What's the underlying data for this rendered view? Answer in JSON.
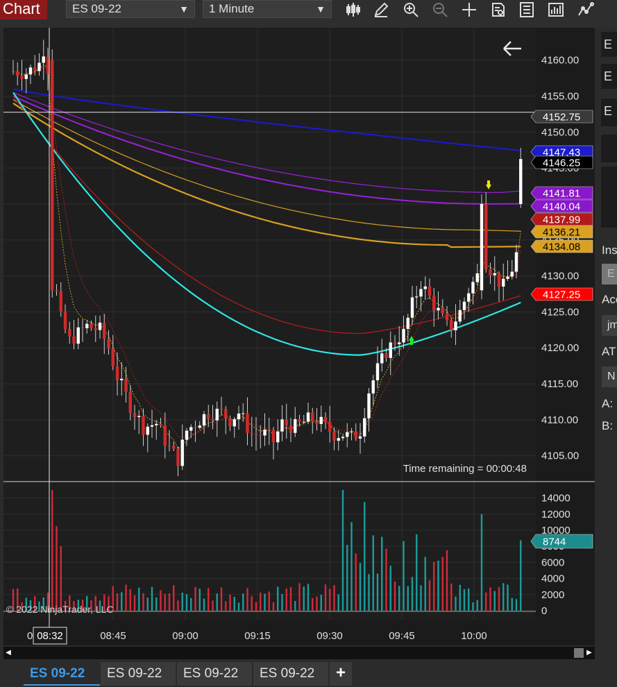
{
  "toolbar": {
    "chart_label": "Chart",
    "instrument": "ES 09-22",
    "interval": "1 Minute",
    "tools": [
      "bar-type-icon",
      "draw-pencil-icon",
      "zoom-in-icon",
      "zoom-out-icon",
      "crosshair-icon",
      "data-box-icon",
      "properties-icon",
      "strategies-icon",
      "indicator-icon"
    ]
  },
  "chart_data": {
    "type": "candlestick",
    "price_axis": {
      "ylim": [
        4101.5,
        4164.5
      ],
      "ticks": [
        "4160.00",
        "4155.00",
        "4150.00",
        "4145.00",
        "4140.00",
        "4135.00",
        "4130.00",
        "4125.00",
        "4120.00",
        "4115.00",
        "4110.00",
        "4105.00"
      ],
      "tick_values": [
        4160,
        4155,
        4150,
        4145,
        4140,
        4135,
        4130,
        4125,
        4120,
        4115,
        4110,
        4105
      ]
    },
    "volume_axis": {
      "ylim": [
        0,
        15000
      ],
      "ticks": [
        "14000",
        "12000",
        "10000",
        "8000",
        "6000",
        "4000",
        "2000",
        "0"
      ],
      "tick_values": [
        14000,
        12000,
        10000,
        8000,
        6000,
        4000,
        2000,
        0
      ]
    },
    "time_axis": {
      "labels": [
        "08:45",
        "09:00",
        "09:15",
        "09:30",
        "09:45",
        "10:00"
      ],
      "crosshair_label": "08:32",
      "partial_label": "0"
    },
    "price_markers": [
      {
        "label": "4152.75",
        "value": 4152.75,
        "bg": "#3a3a3a",
        "fg": "#ffffff"
      },
      {
        "label": "4147.43",
        "value": 4147.43,
        "bg": "#1c1cc8",
        "fg": "#ffffff"
      },
      {
        "label": "4146.25",
        "value": 4146.25,
        "bg": "#000000",
        "fg": "#ffffff"
      },
      {
        "label": "4141.81",
        "value": 4141.81,
        "bg": "#8a17c9",
        "fg": "#ffffff"
      },
      {
        "label": "4140.04",
        "value": 4140.04,
        "bg": "#8a17c9",
        "fg": "#ffffff"
      },
      {
        "label": "4137.99",
        "value": 4137.99,
        "bg": "#b31b1b",
        "fg": "#ffffff"
      },
      {
        "label": "4136.21",
        "value": 4136.21,
        "bg": "#d9a021",
        "fg": "#000000"
      },
      {
        "label": "4134.08",
        "value": 4134.08,
        "bg": "#d9a021",
        "fg": "#000000"
      },
      {
        "label": "4127.25",
        "value": 4127.25,
        "bg": "#ff0000",
        "fg": "#ffffff"
      }
    ],
    "volume_marker": {
      "label": "8744",
      "value": 8744,
      "bg": "#1c8c8c",
      "fg": "#ffffff"
    },
    "time_remaining": "Time remaining = 00:00:48",
    "copyright": "© 2022 NinjaTrader, LLC",
    "colors": {
      "up": "#ffffff",
      "down": "#d32a2a",
      "vol_up": "#1c9c9c",
      "vol_down": "#d32a3a"
    }
  },
  "right_panel": {
    "boxes": [
      "E",
      "E",
      "E"
    ],
    "labels": [
      "Ins",
      "Acc",
      "AT",
      "A:",
      "B:"
    ],
    "inputs": [
      "E",
      "jm",
      "N"
    ]
  },
  "tabs": [
    "ES 09-22",
    "ES 09-22",
    "ES 09-22",
    "ES 09-22"
  ],
  "tab_add": "+"
}
